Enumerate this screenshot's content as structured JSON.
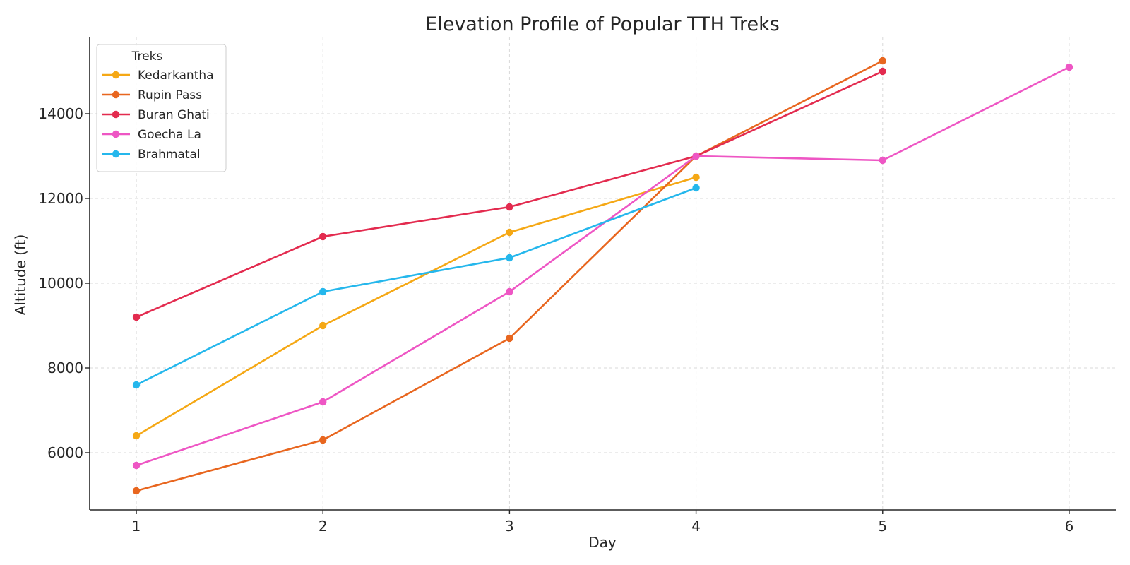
{
  "chart_data": {
    "type": "line",
    "title": "Elevation Profile of Popular TTH Treks",
    "xlabel": "Day",
    "ylabel": "Altitude (ft)",
    "xlim": [
      0.75,
      6.25
    ],
    "ylim": [
      4650,
      15800
    ],
    "xticks": [
      1,
      2,
      3,
      4,
      5,
      6
    ],
    "yticks": [
      6000,
      8000,
      10000,
      12000,
      14000
    ],
    "grid": true,
    "legend": {
      "title": "Treks",
      "position": "top-left"
    },
    "series": [
      {
        "name": "Kedarkantha",
        "color": "#f5a815",
        "x": [
          1,
          2,
          3,
          4
        ],
        "values": [
          6400,
          9000,
          11200,
          12500
        ]
      },
      {
        "name": "Rupin Pass",
        "color": "#e8661f",
        "x": [
          1,
          2,
          3,
          4,
          5
        ],
        "values": [
          5100,
          6300,
          8700,
          13000,
          15250
        ]
      },
      {
        "name": "Buran Ghati",
        "color": "#e32b4f",
        "x": [
          1,
          2,
          3,
          4,
          5
        ],
        "values": [
          9200,
          11100,
          11800,
          13000,
          15000
        ]
      },
      {
        "name": "Goecha La",
        "color": "#ee56c4",
        "x": [
          1,
          2,
          3,
          4,
          5,
          6
        ],
        "values": [
          5700,
          7200,
          9800,
          13000,
          12900,
          15100
        ]
      },
      {
        "name": "Brahmatal",
        "color": "#25b7ec",
        "x": [
          1,
          2,
          3,
          4
        ],
        "values": [
          7600,
          9800,
          10600,
          12250
        ]
      }
    ]
  }
}
